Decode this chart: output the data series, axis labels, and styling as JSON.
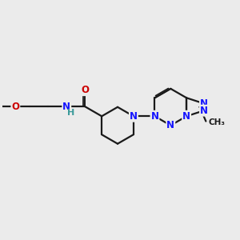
{
  "bg_color": "#ebebeb",
  "bond_color": "#1a1a1a",
  "N_color": "#1414ff",
  "O_color": "#cc0000",
  "H_color": "#3a9a9a",
  "line_width": 1.6,
  "font_size": 8.5,
  "fig_size": [
    3.0,
    3.0
  ],
  "dpi": 100,
  "xlim": [
    0,
    10
  ],
  "ylim": [
    0,
    10
  ]
}
